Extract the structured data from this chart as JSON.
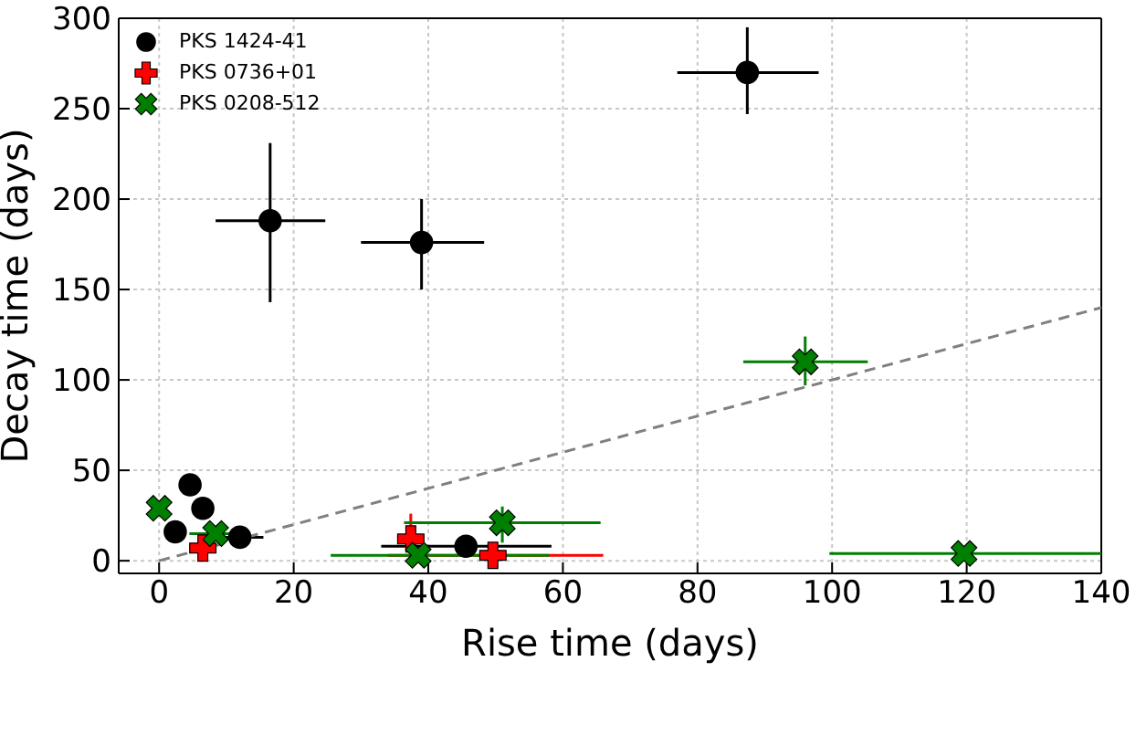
{
  "chart_data": {
    "type": "scatter",
    "xlabel": "Rise time (days)",
    "ylabel": "Decay time (days)",
    "xlim": [
      -6,
      140
    ],
    "ylim": [
      -7,
      300
    ],
    "xticks": [
      0,
      20,
      40,
      60,
      80,
      100,
      120,
      140
    ],
    "yticks": [
      0,
      50,
      100,
      150,
      200,
      250,
      300
    ],
    "grid": true,
    "legend": "top left",
    "series": [
      {
        "name": "PKS 1424-41",
        "color": "#000000",
        "marker": "circle",
        "x": [
          4.6,
          6.5,
          2.4,
          12,
          45.6,
          16.5,
          39,
          87.4
        ],
        "values": [
          42,
          29,
          16,
          13,
          8,
          188,
          176,
          270
        ],
        "xerrors": [
          null,
          null,
          null,
          [
            8.5,
            15.5
          ],
          [
            33,
            58.3
          ],
          [
            8.4,
            24.7
          ],
          [
            30,
            48.3
          ],
          [
            77,
            98
          ]
        ],
        "errors": [
          null,
          [
            23,
            33
          ],
          null,
          null,
          null,
          [
            143,
            231
          ],
          [
            150,
            200
          ],
          [
            247,
            295
          ]
        ]
      },
      {
        "name": "PKS 0736+01",
        "color": "#ff0000",
        "marker": "cross",
        "x": [
          6.5,
          37.4,
          49.6
        ],
        "values": [
          7,
          12,
          3
        ],
        "xerrors": [
          null,
          null,
          [
            34,
            66
          ]
        ],
        "errors": [
          null,
          [
            0,
            26
          ],
          null
        ]
      },
      {
        "name": "PKS 0208-512",
        "color": "#008000",
        "marker": "x",
        "x": [
          0,
          8.4,
          38.5,
          51,
          96,
          119.6
        ],
        "values": [
          29,
          15,
          3,
          21,
          110,
          4
        ],
        "xerrors": [
          null,
          [
            4.5,
            13
          ],
          [
            25.5,
            58
          ],
          [
            36.4,
            65.6
          ],
          [
            86.8,
            105.3
          ],
          [
            99.6,
            140
          ]
        ],
        "errors": [
          null,
          null,
          null,
          [
            10,
            30
          ],
          [
            97,
            124
          ],
          null
        ]
      },
      {
        "type": "line",
        "color": "#808080",
        "line_style": "dashed",
        "marker": "none",
        "x": [
          0,
          140
        ],
        "values": [
          0,
          140
        ]
      }
    ]
  }
}
